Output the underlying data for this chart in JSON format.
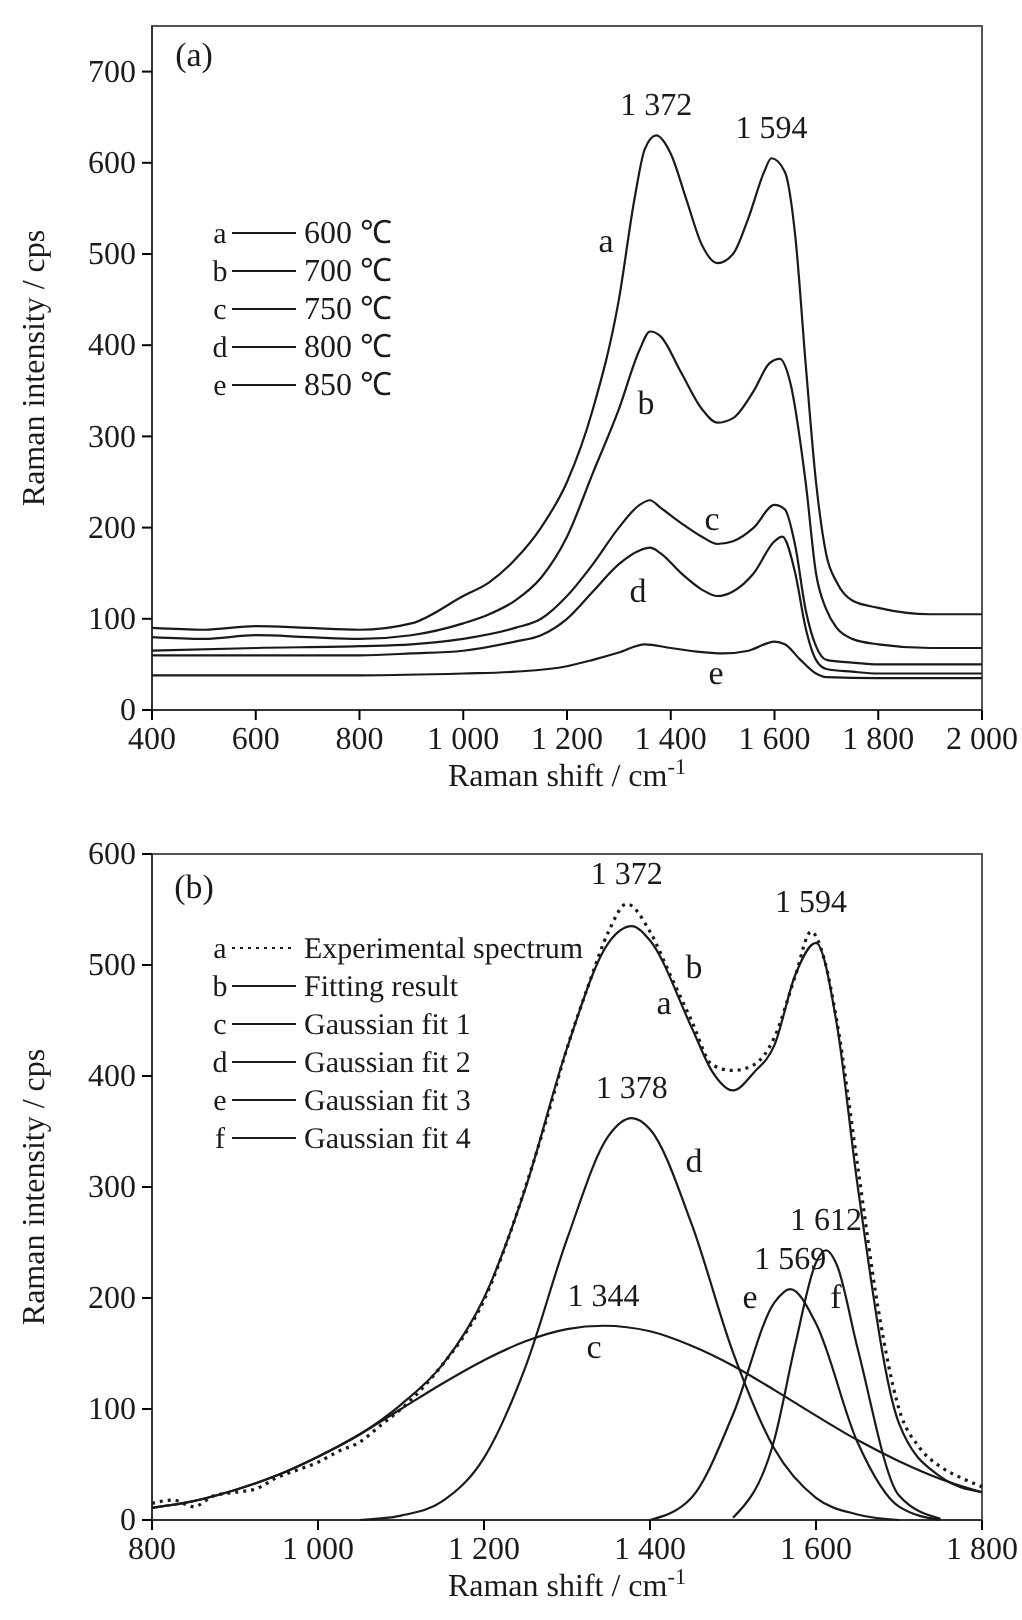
{
  "chart_data": [
    {
      "type": "line",
      "xlabel": "Raman shift / cm$^{-1}$",
      "ylabel": "Raman intensity / cps",
      "xlim": [
        400,
        2000
      ],
      "ylim": [
        0,
        750
      ],
      "xticks": [
        400,
        600,
        800,
        {
          "value": 1000,
          "label": "1 000"
        },
        {
          "value": 1200,
          "label": "1 200"
        },
        {
          "value": 1400,
          "label": "1 400"
        },
        {
          "value": 1600,
          "label": "1 600"
        },
        {
          "value": 1800,
          "label": "1 800"
        },
        {
          "value": 2000,
          "label": "2 000"
        }
      ],
      "yticks": [
        0,
        100,
        200,
        300,
        400,
        500,
        600,
        700
      ],
      "grid": false,
      "legend": "left",
      "line_style": "solid",
      "marker": "none",
      "series": [
        {
          "name": "600 ℃",
          "color": "#1a1a1a",
          "x": [
            400,
            500,
            600,
            700,
            800,
            900,
            1000,
            1050,
            1100,
            1150,
            1200,
            1250,
            1300,
            1330,
            1350,
            1372,
            1400,
            1430,
            1460,
            1490,
            1520,
            1550,
            1580,
            1594,
            1620,
            1640,
            1660,
            1680,
            1700,
            1720,
            1750,
            1800,
            1900,
            2000
          ],
          "values": [
            90,
            88,
            92,
            90,
            88,
            95,
            125,
            140,
            165,
            200,
            250,
            330,
            450,
            560,
            615,
            630,
            610,
            560,
            510,
            490,
            500,
            540,
            590,
            605,
            590,
            520,
            380,
            250,
            170,
            140,
            120,
            112,
            105,
            105
          ]
        },
        {
          "name": "700 ℃",
          "color": "#1a1a1a",
          "x": [
            400,
            500,
            600,
            700,
            800,
            900,
            1000,
            1050,
            1100,
            1150,
            1200,
            1250,
            1300,
            1340,
            1360,
            1380,
            1420,
            1460,
            1490,
            1520,
            1560,
            1590,
            1610,
            1630,
            1660,
            1680,
            1700,
            1720,
            1750,
            1800,
            1900,
            2000
          ],
          "values": [
            80,
            78,
            82,
            80,
            78,
            82,
            95,
            105,
            120,
            145,
            190,
            260,
            330,
            395,
            415,
            410,
            370,
            330,
            315,
            320,
            350,
            380,
            385,
            360,
            250,
            150,
            110,
            90,
            78,
            72,
            68,
            68
          ]
        },
        {
          "name": "750 ℃",
          "color": "#1a1a1a",
          "x": [
            400,
            600,
            800,
            900,
            1000,
            1100,
            1150,
            1200,
            1250,
            1300,
            1340,
            1360,
            1380,
            1420,
            1460,
            1490,
            1520,
            1560,
            1600,
            1620,
            1640,
            1660,
            1680,
            1700,
            1750,
            1800,
            1900,
            2000
          ],
          "values": [
            65,
            68,
            70,
            72,
            78,
            90,
            100,
            125,
            160,
            200,
            225,
            230,
            222,
            205,
            190,
            182,
            185,
            200,
            225,
            220,
            180,
            110,
            70,
            55,
            52,
            50,
            50,
            50
          ]
        },
        {
          "name": "800 ℃",
          "color": "#1a1a1a",
          "x": [
            400,
            600,
            800,
            900,
            1000,
            1100,
            1150,
            1200,
            1250,
            1300,
            1340,
            1360,
            1380,
            1420,
            1460,
            1490,
            1520,
            1560,
            1600,
            1615,
            1640,
            1660,
            1680,
            1700,
            1750,
            1800,
            2000
          ],
          "values": [
            60,
            60,
            60,
            62,
            65,
            75,
            82,
            100,
            130,
            160,
            175,
            178,
            172,
            150,
            132,
            125,
            130,
            150,
            185,
            190,
            150,
            90,
            55,
            45,
            42,
            40,
            40
          ]
        },
        {
          "name": "850 ℃",
          "color": "#1a1a1a",
          "x": [
            400,
            600,
            800,
            1000,
            1100,
            1200,
            1250,
            1300,
            1350,
            1400,
            1450,
            1500,
            1550,
            1600,
            1620,
            1650,
            1680,
            1700,
            1800,
            2000
          ],
          "values": [
            38,
            38,
            38,
            40,
            42,
            48,
            55,
            63,
            72,
            68,
            64,
            62,
            65,
            75,
            72,
            55,
            40,
            36,
            35,
            35
          ]
        }
      ],
      "annotations": [
        "a",
        "b",
        "c",
        "d",
        "e",
        "(a)",
        {
          "text": "1 372",
          "x": 1372,
          "y": 630
        },
        {
          "text": "1 594",
          "x": 1594,
          "y": 605
        }
      ]
    },
    {
      "type": "line",
      "xlabel": "Raman shift / cm$^{-1}$",
      "ylabel": "Raman intensity / cps",
      "xlim": [
        800,
        1800
      ],
      "ylim": [
        0,
        600
      ],
      "xticks": [
        800,
        {
          "value": 1000,
          "label": "1 000"
        },
        {
          "value": 1200,
          "label": "1 200"
        },
        {
          "value": 1400,
          "label": "1 400"
        },
        {
          "value": 1600,
          "label": "1 600"
        },
        {
          "value": 1800,
          "label": "1 800"
        }
      ],
      "yticks": [
        0,
        100,
        200,
        300,
        400,
        500,
        600
      ],
      "grid": false,
      "legend": "top left",
      "line_style": "solid",
      "marker": "none",
      "series": [
        {
          "name": "Experimental spectrum",
          "color": "#1a1a1a",
          "line_style": "dotted",
          "x": [
            800,
            825,
            850,
            875,
            900,
            925,
            950,
            975,
            1000,
            1025,
            1050,
            1075,
            1100,
            1125,
            1150,
            1175,
            1200,
            1225,
            1250,
            1275,
            1300,
            1325,
            1350,
            1372,
            1400,
            1425,
            1450,
            1475,
            1500,
            1525,
            1550,
            1575,
            1594,
            1610,
            1625,
            1650,
            1675,
            1700,
            1725,
            1750,
            1775,
            1800
          ],
          "values": [
            15,
            18,
            12,
            22,
            25,
            28,
            38,
            45,
            52,
            62,
            70,
            85,
            100,
            118,
            140,
            165,
            198,
            245,
            300,
            360,
            425,
            480,
            530,
            555,
            530,
            490,
            450,
            410,
            405,
            410,
            435,
            490,
            530,
            505,
            450,
            320,
            190,
            100,
            65,
            48,
            38,
            30
          ]
        },
        {
          "name": "Fitting result",
          "color": "#1a1a1a",
          "x": [
            800,
            850,
            900,
            950,
            1000,
            1050,
            1100,
            1150,
            1200,
            1250,
            1300,
            1350,
            1378,
            1400,
            1450,
            1475,
            1500,
            1525,
            1550,
            1575,
            1600,
            1625,
            1650,
            1700,
            1750,
            1800
          ],
          "values": [
            11,
            17,
            27,
            40,
            57,
            77,
            104,
            140,
            200,
            299,
            425,
            520,
            535,
            522,
            444,
            404,
            387,
            403,
            428,
            491,
            520,
            447,
            302,
            87,
            39,
            25
          ]
        },
        {
          "name": "Gaussian fit 1",
          "color": "#1a1a1a",
          "x": [
            800,
            850,
            900,
            950,
            1000,
            1050,
            1100,
            1150,
            1200,
            1250,
            1300,
            1344,
            1400,
            1450,
            1500,
            1550,
            1600,
            1650,
            1700,
            1750,
            1800
          ],
          "values": [
            11,
            17,
            27,
            40,
            57,
            77,
            100,
            123,
            144,
            161,
            172,
            175,
            170,
            157,
            139,
            117,
            94,
            72,
            53,
            37,
            25
          ]
        },
        {
          "name": "Gaussian fit 2",
          "color": "#1a1a1a",
          "x": [
            1050,
            1100,
            1150,
            1200,
            1250,
            1300,
            1350,
            1378,
            1400,
            1450,
            1500,
            1550,
            1600,
            1650,
            1700
          ],
          "values": [
            0,
            4,
            17,
            56,
            138,
            253,
            346,
            362,
            352,
            267,
            151,
            64,
            20,
            5,
            0
          ]
        },
        {
          "name": "Gaussian fit 3",
          "color": "#1a1a1a",
          "x": [
            1400,
            1450,
            1500,
            1550,
            1569,
            1600,
            1650,
            1700,
            1750
          ],
          "values": [
            0,
            20,
            95,
            196,
            208,
            177,
            70,
            12,
            0
          ]
        },
        {
          "name": "Gaussian fit 4",
          "color": "#1a1a1a",
          "x": [
            1500,
            1550,
            1575,
            1600,
            1612,
            1625,
            1650,
            1700,
            1750
          ],
          "values": [
            2,
            73,
            158,
            232,
            243,
            230,
            155,
            22,
            1
          ]
        }
      ],
      "annotations": [
        "a",
        "b",
        "c",
        "d",
        "e",
        "f",
        "(b)",
        {
          "text": "1 372",
          "x": 1372,
          "y": 555
        },
        {
          "text": "1 594",
          "x": 1594,
          "y": 530
        },
        {
          "text": "1 378",
          "x": 1378,
          "y": 362
        },
        {
          "text": "1 344",
          "x": 1344,
          "y": 175
        },
        {
          "text": "1 569",
          "x": 1569,
          "y": 208
        },
        {
          "text": "1 612",
          "x": 1612,
          "y": 243
        }
      ]
    }
  ]
}
